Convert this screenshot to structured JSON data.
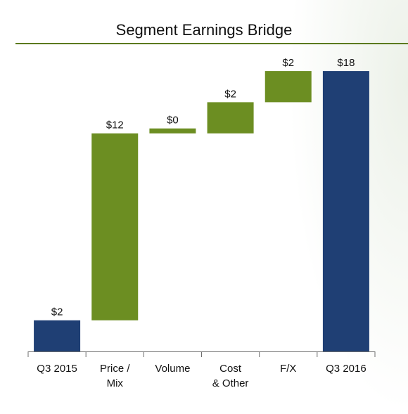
{
  "chart_data": {
    "type": "waterfall",
    "title": "Segment Earnings Bridge",
    "categories": [
      "Q3 2015",
      "Price /\nMix",
      "Volume",
      "Cost\n& Other",
      "F/X",
      "Q3 2016"
    ],
    "values": [
      2,
      12,
      0,
      2,
      2,
      18
    ],
    "kinds": [
      "total",
      "delta",
      "delta",
      "delta",
      "delta",
      "total"
    ],
    "value_labels": [
      "$2",
      "$12",
      "$0",
      "$2",
      "$2",
      "$18"
    ],
    "ylim": [
      0,
      18.5
    ],
    "grid": false,
    "colors": {
      "total": "#1f3f74",
      "delta": "#6c8e22",
      "axis": "#6e6e6e",
      "rule": "#5b7a1e"
    }
  }
}
